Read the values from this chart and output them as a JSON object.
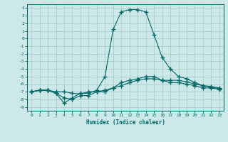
{
  "xlabel": "Humidex (Indice chaleur)",
  "background_color": "#cce8e8",
  "grid_color": "#aacccc",
  "line_color": "#006666",
  "xlim": [
    -0.5,
    23.5
  ],
  "ylim": [
    -9.5,
    4.5
  ],
  "xticks": [
    0,
    1,
    2,
    3,
    4,
    5,
    6,
    7,
    8,
    9,
    10,
    11,
    12,
    13,
    14,
    15,
    16,
    17,
    18,
    19,
    20,
    21,
    22,
    23
  ],
  "yticks": [
    4,
    3,
    2,
    1,
    0,
    -1,
    -2,
    -3,
    -4,
    -5,
    -6,
    -7,
    -8,
    -9
  ],
  "series1_x": [
    0,
    1,
    2,
    3,
    4,
    5,
    6,
    7,
    8,
    9,
    10,
    11,
    12,
    13,
    14,
    15,
    16,
    17,
    18,
    19,
    20,
    21,
    22,
    23
  ],
  "series1_y": [
    -7,
    -6.8,
    -6.8,
    -7.2,
    -8.5,
    -7.8,
    -7.2,
    -7.2,
    -6.8,
    -5.0,
    1.2,
    3.5,
    3.8,
    3.8,
    3.5,
    0.5,
    -2.5,
    -4.0,
    -5.0,
    -5.3,
    -5.8,
    -6.2,
    -6.4,
    -6.6
  ],
  "series2_x": [
    0,
    1,
    2,
    3,
    4,
    5,
    6,
    7,
    8,
    9,
    10,
    11,
    12,
    13,
    14,
    15,
    16,
    17,
    18,
    19,
    20,
    21,
    22,
    23
  ],
  "series2_y": [
    -7,
    -6.8,
    -6.8,
    -7.2,
    -7.8,
    -8.0,
    -7.5,
    -7.5,
    -7.0,
    -7.0,
    -6.5,
    -5.8,
    -5.5,
    -5.3,
    -5.0,
    -5.0,
    -5.5,
    -5.8,
    -5.8,
    -6.0,
    -6.2,
    -6.5,
    -6.5,
    -6.7
  ],
  "series3_x": [
    0,
    1,
    2,
    3,
    4,
    5,
    6,
    7,
    8,
    9,
    10,
    11,
    12,
    13,
    14,
    15,
    16,
    17,
    18,
    19,
    20,
    21,
    22,
    23
  ],
  "series3_y": [
    -7,
    -6.8,
    -6.8,
    -7.0,
    -7.0,
    -7.2,
    -7.3,
    -7.0,
    -7.0,
    -6.8,
    -6.5,
    -6.2,
    -5.8,
    -5.5,
    -5.3,
    -5.3,
    -5.5,
    -5.5,
    -5.5,
    -5.7,
    -6.0,
    -6.2,
    -6.3,
    -6.5
  ]
}
